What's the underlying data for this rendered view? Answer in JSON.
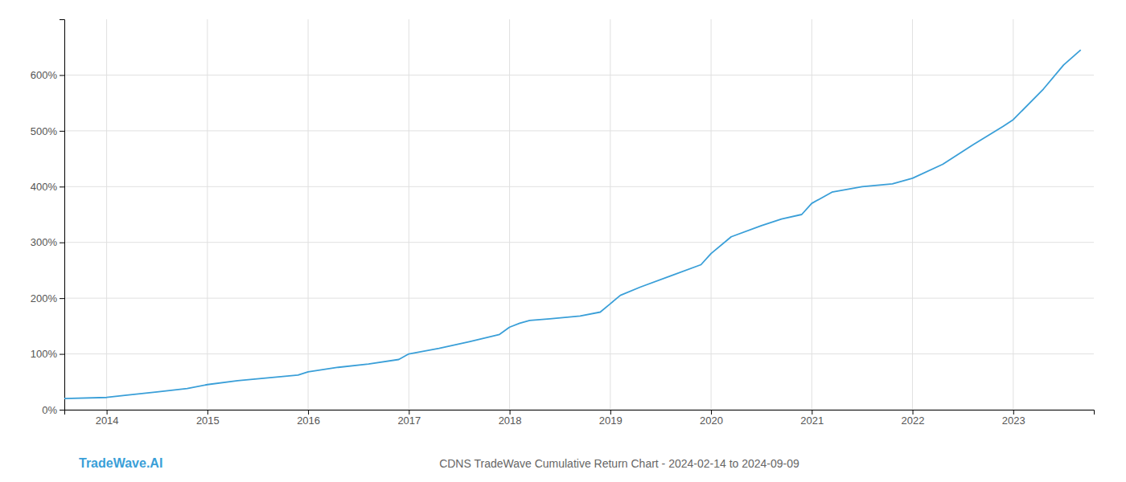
{
  "chart_data": {
    "type": "line",
    "title": "CDNS TradeWave Cumulative Return Chart - 2024-02-14 to 2024-09-09",
    "annotations": [
      "TradeWave.AI"
    ],
    "color": "#3a9fd8",
    "grid": true,
    "x": [
      2013.58,
      2014.0,
      2014.2,
      2014.5,
      2014.8,
      2015.0,
      2015.3,
      2015.6,
      2015.9,
      2016.0,
      2016.3,
      2016.6,
      2016.9,
      2017.0,
      2017.3,
      2017.6,
      2017.9,
      2018.0,
      2018.1,
      2018.2,
      2018.4,
      2018.7,
      2018.9,
      2019.0,
      2019.1,
      2019.3,
      2019.6,
      2019.9,
      2020.0,
      2020.2,
      2020.5,
      2020.7,
      2020.9,
      2021.0,
      2021.2,
      2021.5,
      2021.8,
      2022.0,
      2022.3,
      2022.6,
      2022.9,
      2023.0,
      2023.3,
      2023.5,
      2023.67
    ],
    "values": [
      20,
      22,
      26,
      32,
      38,
      45,
      52,
      57,
      62,
      68,
      76,
      82,
      90,
      100,
      110,
      122,
      135,
      148,
      155,
      160,
      163,
      168,
      175,
      190,
      205,
      220,
      240,
      260,
      280,
      310,
      330,
      342,
      350,
      370,
      390,
      400,
      405,
      415,
      440,
      475,
      508,
      520,
      575,
      618,
      645
    ],
    "xlim": [
      2013.58,
      2023.8
    ],
    "xticks": [
      2014,
      2015,
      2016,
      2017,
      2018,
      2019,
      2020,
      2021,
      2022,
      2023
    ],
    "ylim": [
      0,
      700
    ],
    "yticks": [
      {
        "value": 0,
        "label": "0%"
      },
      {
        "value": 100,
        "label": "100%"
      },
      {
        "value": 200,
        "label": "200%"
      },
      {
        "value": 300,
        "label": "300%"
      },
      {
        "value": 400,
        "label": "400%"
      },
      {
        "value": 500,
        "label": "500%"
      },
      {
        "value": 600,
        "label": "600%"
      }
    ]
  }
}
